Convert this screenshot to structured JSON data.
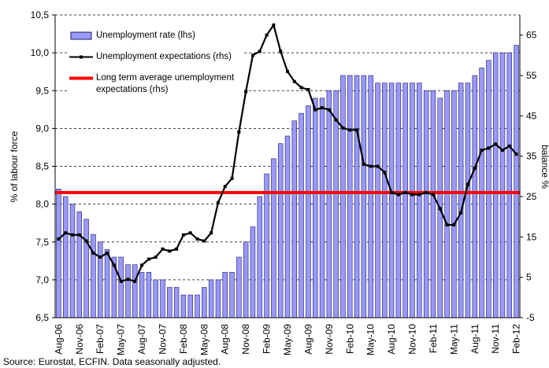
{
  "chart_data": {
    "type": "bar_line",
    "y_label": "% of labour force",
    "y2_label": "balance %",
    "source": "Source: Eurostat, ECFIN. Data seasonally adjusted.",
    "categories": [
      "Aug-06",
      null,
      null,
      "Nov-06",
      null,
      null,
      "Feb-07",
      null,
      null,
      "May-07",
      null,
      null,
      "Aug-07",
      null,
      null,
      "Nov-07",
      null,
      null,
      "Feb-08",
      null,
      null,
      "May-08",
      null,
      null,
      "Aug-08",
      null,
      null,
      "Nov-08",
      null,
      null,
      "Feb-09",
      null,
      null,
      "May-09",
      null,
      null,
      "Aug-09",
      null,
      null,
      "Nov-09",
      null,
      null,
      "Feb-10",
      null,
      null,
      "May-10",
      null,
      null,
      "Aug-10",
      null,
      null,
      "Nov-10",
      null,
      null,
      "Feb-11",
      null,
      null,
      "May-11",
      null,
      null,
      "Aug-11",
      null,
      null,
      "Nov-11",
      null,
      null,
      "Feb-12"
    ],
    "series": [
      {
        "name": "Unemployment rate (lhs)",
        "color": "#9999ff",
        "kind": "bar",
        "values": [
          8.2,
          8.1,
          8.0,
          7.9,
          7.8,
          7.6,
          7.5,
          7.4,
          7.3,
          7.3,
          7.2,
          7.2,
          7.1,
          7.1,
          7.0,
          7.0,
          6.9,
          6.9,
          6.8,
          6.8,
          6.8,
          6.9,
          7.0,
          7.0,
          7.1,
          7.1,
          7.3,
          7.5,
          7.7,
          8.1,
          8.4,
          8.6,
          8.8,
          8.9,
          9.1,
          9.2,
          9.3,
          9.4,
          9.4,
          9.5,
          9.5,
          9.7,
          9.7,
          9.7,
          9.7,
          9.7,
          9.6,
          9.6,
          9.6,
          9.6,
          9.6,
          9.6,
          9.6,
          9.5,
          9.5,
          9.4,
          9.5,
          9.5,
          9.6,
          9.6,
          9.7,
          9.8,
          9.9,
          10.0,
          10.0,
          10.0,
          10.1
        ]
      },
      {
        "name": "Unemployment expectations (rhs)",
        "color": "#000000",
        "kind": "line",
        "axis": "y2",
        "values": [
          14.5,
          16,
          15.5,
          15.5,
          14,
          11,
          10,
          11,
          8,
          4,
          4.5,
          4,
          8,
          9.5,
          10,
          12,
          11.5,
          12,
          15.5,
          16,
          14.5,
          14,
          16,
          23.5,
          27.5,
          29.5,
          41,
          51,
          60,
          61,
          65,
          67.5,
          61,
          56,
          53.5,
          52,
          51.5,
          46.5,
          47,
          46.5,
          44,
          42,
          41.5,
          41.5,
          33,
          32.5,
          32.5,
          31,
          26,
          25.5,
          26,
          25.5,
          25.5,
          26,
          25.5,
          22,
          18,
          18,
          21,
          28,
          32,
          36.5,
          37,
          38,
          36.5,
          37.5,
          35.5
        ]
      },
      {
        "name": "Long term average unemployment expectations (rhs)",
        "color": "#ff0000",
        "kind": "hline",
        "axis": "y2",
        "value": 26
      }
    ],
    "ylim": [
      6.5,
      10.5
    ],
    "yticks": [
      {
        "value": 6.5,
        "label": "6,5"
      },
      {
        "value": 7.0,
        "label": "7,0"
      },
      {
        "value": 7.5,
        "label": "7,5"
      },
      {
        "value": 8.0,
        "label": "8,0"
      },
      {
        "value": 8.5,
        "label": "8,5"
      },
      {
        "value": 9.0,
        "label": "9,0"
      },
      {
        "value": 9.5,
        "label": "9,5"
      },
      {
        "value": 10.0,
        "label": "10,0"
      },
      {
        "value": 10.5,
        "label": "10,5"
      }
    ],
    "y2lim": [
      -5,
      70
    ],
    "y2ticks": [
      -5,
      5,
      15,
      25,
      35,
      45,
      55,
      65
    ],
    "grid": true,
    "grid_style": "dashed"
  }
}
